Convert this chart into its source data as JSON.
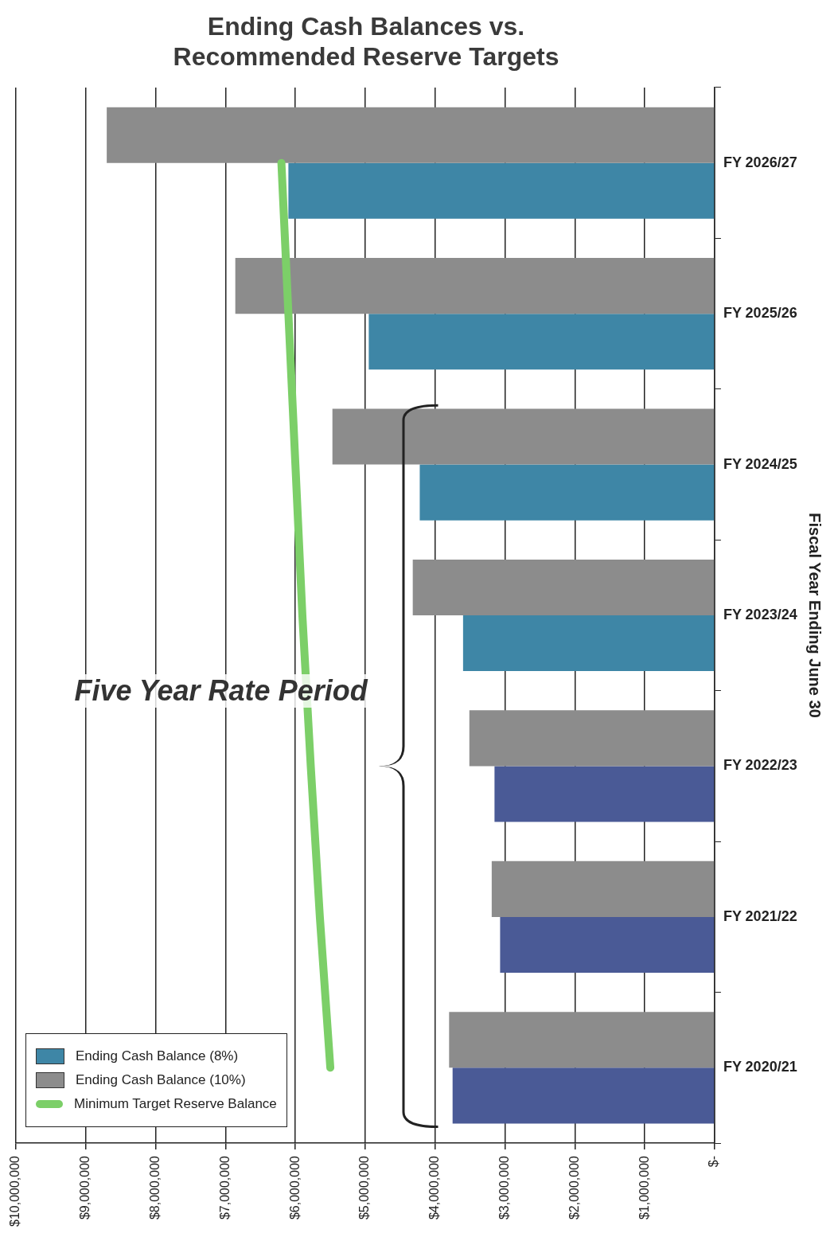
{
  "chart_data": {
    "type": "bar",
    "orientation": "horizontal",
    "title": "Ending Cash Balances vs. Recommended Reserve Targets",
    "ylabel": "Fiscal Year Ending June 30",
    "categories": [
      "FY 2026/27",
      "FY 2025/26",
      "FY 2024/25",
      "FY 2023/24",
      "FY 2022/23",
      "FY 2021/22",
      "FY 2020/21"
    ],
    "series": [
      {
        "name": "Ending Cash Balance (8%)",
        "color": "#3e86a6",
        "colors": [
          "#3e86a6",
          "#3e86a6",
          "#3e86a6",
          "#3e86a6",
          "#4a5a96",
          "#4a5a96",
          "#4a5a96"
        ],
        "values": [
          6100000,
          4950000,
          4220000,
          3600000,
          3150000,
          3070000,
          3750000
        ]
      },
      {
        "name": "Ending Cash Balance (10%)",
        "color": "#8c8c8c",
        "values": [
          8700000,
          6860000,
          5470000,
          4320000,
          3510000,
          3190000,
          3800000
        ]
      },
      {
        "name": "Minimum Target Reserve Balance",
        "type": "line",
        "color": "#7ccf68",
        "values": [
          6200000,
          6100000,
          6000000,
          5900000,
          5780000,
          5650000,
          5500000
        ]
      }
    ],
    "xlim": [
      10000000,
      0
    ],
    "xticks": [
      {
        "value": 0,
        "label": "$-"
      },
      {
        "value": 1000000,
        "label": "$1,000,000"
      },
      {
        "value": 2000000,
        "label": "$2,000,000"
      },
      {
        "value": 3000000,
        "label": "$3,000,000"
      },
      {
        "value": 4000000,
        "label": "$4,000,000"
      },
      {
        "value": 5000000,
        "label": "$5,000,000"
      },
      {
        "value": 6000000,
        "label": "$6,000,000"
      },
      {
        "value": 7000000,
        "label": "$7,000,000"
      },
      {
        "value": 8000000,
        "label": "$8,000,000"
      },
      {
        "value": 9000000,
        "label": "$9,000,000"
      },
      {
        "value": 10000000,
        "label": "$10,000,000"
      }
    ],
    "grid": "x",
    "legend": "bottom left",
    "marker": "none",
    "annotations": [
      "Five Year Rate Period"
    ]
  }
}
